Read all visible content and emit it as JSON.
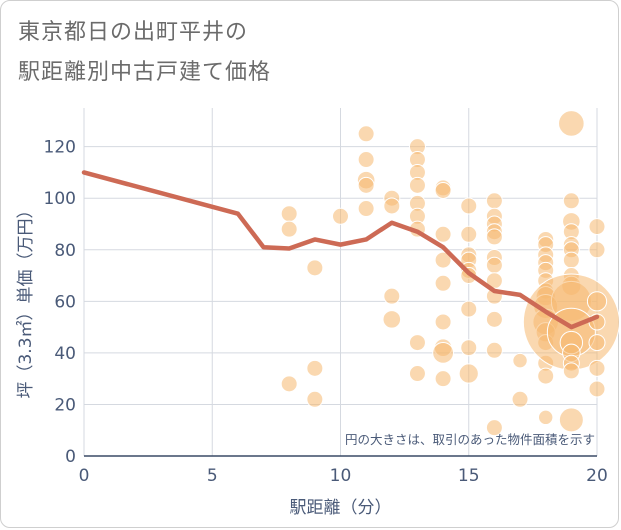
{
  "title_line1": "東京都日の出町平井の",
  "title_line2": "駅距離別中古戸建て価格",
  "colors": {
    "bubble": "#f5b870",
    "line": "#cd6a55",
    "grid": "#d5d9e0",
    "text": "#4a5a78"
  },
  "chart_data": {
    "type": "scatter",
    "xlabel": "駅距離（分）",
    "ylabel": "坪（3.3㎡）単価（万円）",
    "xlim": [
      0,
      20
    ],
    "ylim": [
      0,
      135
    ],
    "xticks": [
      0,
      5,
      10,
      15,
      20
    ],
    "yticks": [
      0,
      20,
      40,
      60,
      80,
      100,
      120
    ],
    "note": "円の大きさは、取引のあった物件面積を示す",
    "average_line": {
      "x": [
        0,
        6,
        7,
        8,
        9,
        10,
        11,
        12,
        13,
        14,
        15,
        16,
        17,
        18,
        19,
        20
      ],
      "y": [
        110,
        94,
        81,
        80.5,
        84,
        82,
        84,
        90.5,
        87,
        81,
        71,
        64,
        62.5,
        56,
        50,
        54
      ]
    },
    "bubbles": [
      {
        "x": 8,
        "y": 94,
        "s": 1
      },
      {
        "x": 8,
        "y": 88,
        "s": 1
      },
      {
        "x": 8,
        "y": 28,
        "s": 1
      },
      {
        "x": 9,
        "y": 73,
        "s": 1
      },
      {
        "x": 9,
        "y": 34,
        "s": 1
      },
      {
        "x": 9,
        "y": 22,
        "s": 1
      },
      {
        "x": 10,
        "y": 93,
        "s": 1
      },
      {
        "x": 11,
        "y": 125,
        "s": 1
      },
      {
        "x": 11,
        "y": 115,
        "s": 1
      },
      {
        "x": 11,
        "y": 107,
        "s": 1.1
      },
      {
        "x": 11,
        "y": 105,
        "s": 1
      },
      {
        "x": 11,
        "y": 96,
        "s": 1
      },
      {
        "x": 12,
        "y": 100,
        "s": 1
      },
      {
        "x": 12,
        "y": 97,
        "s": 1
      },
      {
        "x": 12,
        "y": 62,
        "s": 1
      },
      {
        "x": 12,
        "y": 53,
        "s": 1.1
      },
      {
        "x": 13,
        "y": 120,
        "s": 1
      },
      {
        "x": 13,
        "y": 115,
        "s": 1
      },
      {
        "x": 13,
        "y": 110,
        "s": 1
      },
      {
        "x": 13,
        "y": 105,
        "s": 1
      },
      {
        "x": 13,
        "y": 98,
        "s": 1
      },
      {
        "x": 13,
        "y": 93,
        "s": 1
      },
      {
        "x": 13,
        "y": 88,
        "s": 1
      },
      {
        "x": 13,
        "y": 44,
        "s": 1
      },
      {
        "x": 13,
        "y": 32,
        "s": 1
      },
      {
        "x": 14,
        "y": 104,
        "s": 1
      },
      {
        "x": 14,
        "y": 103,
        "s": 1
      },
      {
        "x": 14,
        "y": 86,
        "s": 1
      },
      {
        "x": 14,
        "y": 76,
        "s": 1
      },
      {
        "x": 14,
        "y": 67,
        "s": 1
      },
      {
        "x": 14,
        "y": 52,
        "s": 1
      },
      {
        "x": 14,
        "y": 42,
        "s": 1.1
      },
      {
        "x": 14,
        "y": 40,
        "s": 1.3
      },
      {
        "x": 14,
        "y": 30,
        "s": 1
      },
      {
        "x": 15,
        "y": 97,
        "s": 1
      },
      {
        "x": 15,
        "y": 86,
        "s": 1
      },
      {
        "x": 15,
        "y": 78,
        "s": 1
      },
      {
        "x": 15,
        "y": 76,
        "s": 1
      },
      {
        "x": 15,
        "y": 72,
        "s": 1
      },
      {
        "x": 15,
        "y": 70,
        "s": 1
      },
      {
        "x": 15,
        "y": 57,
        "s": 1
      },
      {
        "x": 15,
        "y": 42,
        "s": 1
      },
      {
        "x": 15,
        "y": 32,
        "s": 1.2
      },
      {
        "x": 16,
        "y": 99,
        "s": 1
      },
      {
        "x": 16,
        "y": 93,
        "s": 1
      },
      {
        "x": 16,
        "y": 90,
        "s": 1
      },
      {
        "x": 16,
        "y": 87,
        "s": 1
      },
      {
        "x": 16,
        "y": 85,
        "s": 1
      },
      {
        "x": 16,
        "y": 77,
        "s": 1
      },
      {
        "x": 16,
        "y": 74,
        "s": 1
      },
      {
        "x": 16,
        "y": 68,
        "s": 1
      },
      {
        "x": 16,
        "y": 62,
        "s": 1
      },
      {
        "x": 16,
        "y": 53,
        "s": 1
      },
      {
        "x": 16,
        "y": 41,
        "s": 1
      },
      {
        "x": 16,
        "y": 11,
        "s": 1
      },
      {
        "x": 17,
        "y": 37,
        "s": 0.9
      },
      {
        "x": 17,
        "y": 22,
        "s": 1
      },
      {
        "x": 18,
        "y": 84,
        "s": 1
      },
      {
        "x": 18,
        "y": 82,
        "s": 1
      },
      {
        "x": 18,
        "y": 78,
        "s": 1
      },
      {
        "x": 18,
        "y": 75,
        "s": 1
      },
      {
        "x": 18,
        "y": 72,
        "s": 1
      },
      {
        "x": 18,
        "y": 68,
        "s": 1
      },
      {
        "x": 18,
        "y": 64,
        "s": 1
      },
      {
        "x": 18,
        "y": 62,
        "s": 1.2
      },
      {
        "x": 18,
        "y": 58,
        "s": 1.5
      },
      {
        "x": 18,
        "y": 52,
        "s": 1.6
      },
      {
        "x": 18,
        "y": 48,
        "s": 1.2
      },
      {
        "x": 18,
        "y": 44,
        "s": 1
      },
      {
        "x": 18,
        "y": 36,
        "s": 1
      },
      {
        "x": 18,
        "y": 31,
        "s": 1
      },
      {
        "x": 18,
        "y": 15,
        "s": 0.9
      },
      {
        "x": 19,
        "y": 129,
        "s": 1.6
      },
      {
        "x": 19,
        "y": 99,
        "s": 1
      },
      {
        "x": 19,
        "y": 91,
        "s": 1.1
      },
      {
        "x": 19,
        "y": 87,
        "s": 1
      },
      {
        "x": 19,
        "y": 82,
        "s": 1
      },
      {
        "x": 19,
        "y": 80,
        "s": 1
      },
      {
        "x": 19,
        "y": 76,
        "s": 1
      },
      {
        "x": 19,
        "y": 70,
        "s": 1
      },
      {
        "x": 19,
        "y": 66,
        "s": 1.2
      },
      {
        "x": 19,
        "y": 60,
        "s": 2.5
      },
      {
        "x": 19,
        "y": 52,
        "s": 6.0
      },
      {
        "x": 19,
        "y": 48,
        "s": 3.0
      },
      {
        "x": 19,
        "y": 44,
        "s": 1.4
      },
      {
        "x": 19,
        "y": 40,
        "s": 1.1
      },
      {
        "x": 19,
        "y": 36,
        "s": 1
      },
      {
        "x": 19,
        "y": 33,
        "s": 1
      },
      {
        "x": 19,
        "y": 14,
        "s": 1.5
      },
      {
        "x": 20,
        "y": 89,
        "s": 1
      },
      {
        "x": 20,
        "y": 80,
        "s": 1
      },
      {
        "x": 20,
        "y": 60,
        "s": 1.2
      },
      {
        "x": 20,
        "y": 52,
        "s": 1
      },
      {
        "x": 20,
        "y": 44,
        "s": 1
      },
      {
        "x": 20,
        "y": 34,
        "s": 1
      },
      {
        "x": 20,
        "y": 26,
        "s": 1
      }
    ]
  }
}
